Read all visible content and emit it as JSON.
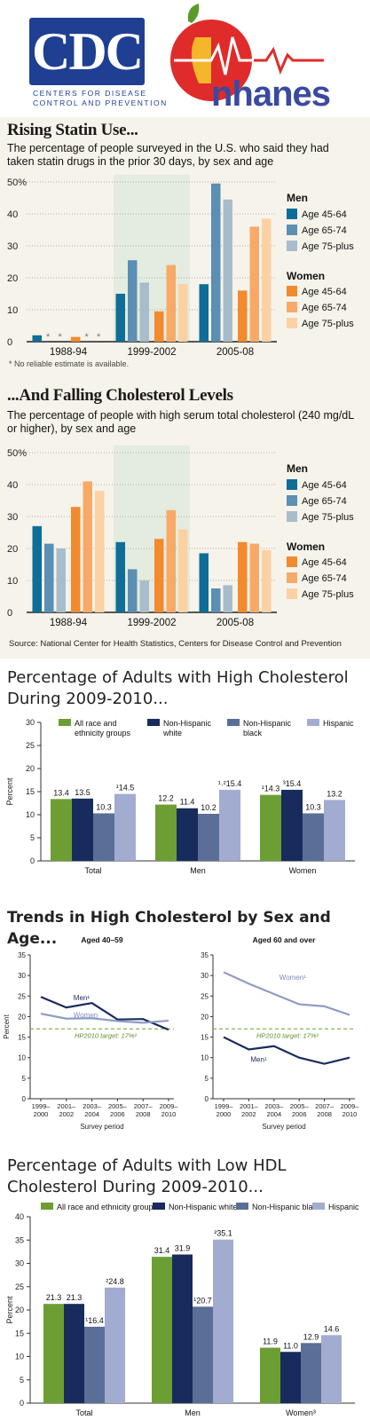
{
  "header": {
    "cdc_logo_text": "CDC",
    "cdc_tagline_1": "Centers for Disease",
    "cdc_tagline_2": "Control and Prevention",
    "nhanes_logo_text": "nhanes"
  },
  "colors": {
    "men_45_64": "#0f6e97",
    "men_65_74": "#5b8fb3",
    "men_75_plus": "#a8bdcb",
    "women_45_64": "#f28a2e",
    "women_65_74": "#f7aa68",
    "women_75_plus": "#fcd1a4",
    "green": "#6d9e33",
    "navy": "#172c5c",
    "slate": "#5b6e97",
    "lavender": "#a2acd0"
  },
  "statin": {
    "title": "Rising Statin Use...",
    "subtitle": "The percentage of people surveyed in the U.S. who said they had taken statin drugs in the prior 30 days, by sex and age",
    "footnote": "* No reliable estimate is available.",
    "legend": {
      "men_heading": "Men",
      "women_heading": "Women",
      "items": [
        "Age 45-64",
        "Age 65-74",
        "Age 75-plus"
      ]
    }
  },
  "cholesterol": {
    "title": "...And Falling Cholesterol Levels",
    "subtitle": "The percentage of people with high serum total cholesterol (240 mg/dL or higher), by sex and age",
    "source": "Source: National Center for Health Statistics, Centers for Disease Control and Prevention",
    "legend": {
      "men_heading": "Men",
      "women_heading": "Women",
      "items": [
        "Age 45-64",
        "Age 65-74",
        "Age 75-plus"
      ]
    }
  },
  "high_chol_title": "Percentage of Adults with High Cholesterol During 2009-2010...",
  "trends_title": "Trends in High Cholesterol by Sex and Age...",
  "low_hdl_title": "Percentage of Adults with Low HDL Cholesterol During 2009-2010...",
  "chart_data": [
    {
      "type": "bar",
      "categories": [
        "1988-94",
        "1999-2002",
        "2005-08"
      ],
      "ylim": [
        0,
        50
      ],
      "yticks": [
        "0",
        "10",
        "20",
        "30",
        "40",
        "50%"
      ],
      "series": [
        {
          "name": "Men Age 45-64",
          "values": [
            2,
            15,
            18
          ]
        },
        {
          "name": "Men Age 65-74",
          "values": [
            null,
            25.5,
            49.5
          ]
        },
        {
          "name": "Men Age 75-plus",
          "values": [
            null,
            18.5,
            44.5
          ]
        },
        {
          "name": "Women Age 45-64",
          "values": [
            1.5,
            9.5,
            16
          ]
        },
        {
          "name": "Women Age 65-74",
          "values": [
            null,
            24,
            36
          ]
        },
        {
          "name": "Women Age 75-plus",
          "values": [
            null,
            18,
            38.5
          ]
        }
      ],
      "missing_marker": "*",
      "legend": "right",
      "grid": true
    },
    {
      "type": "bar",
      "categories": [
        "1988-94",
        "1999-2002",
        "2005-08"
      ],
      "ylim": [
        0,
        50
      ],
      "yticks": [
        "0",
        "10",
        "20",
        "30",
        "40",
        "50%"
      ],
      "series": [
        {
          "name": "Men Age 45-64",
          "values": [
            27,
            22,
            18.5
          ]
        },
        {
          "name": "Men Age 65-74",
          "values": [
            21.5,
            13.5,
            7.5
          ]
        },
        {
          "name": "Men Age 75-plus",
          "values": [
            20,
            10,
            8.5
          ]
        },
        {
          "name": "Women Age 45-64",
          "values": [
            33,
            23,
            22
          ]
        },
        {
          "name": "Women Age 65-74",
          "values": [
            41,
            32,
            21.5
          ]
        },
        {
          "name": "Women Age 75-plus",
          "values": [
            38,
            26,
            19.5
          ]
        }
      ],
      "legend": "right",
      "grid": true
    },
    {
      "type": "bar",
      "categories": [
        "Total",
        "Men",
        "Women"
      ],
      "ylabel": "Percent",
      "ylim": [
        0,
        30
      ],
      "yticks": [
        "0",
        "5",
        "10",
        "15",
        "20",
        "25",
        "30"
      ],
      "series": [
        {
          "name": "All race and ethnicity groups",
          "values": [
            13.4,
            12.2,
            14.3
          ]
        },
        {
          "name": "Non-Hispanic white",
          "values": [
            13.5,
            11.4,
            15.4
          ]
        },
        {
          "name": "Non-Hispanic black",
          "values": [
            10.3,
            10.2,
            10.3
          ]
        },
        {
          "name": "Hispanic",
          "values": [
            14.5,
            15.4,
            13.2
          ]
        }
      ],
      "value_labels": [
        [
          "13.4",
          "12.2",
          "¹14.3"
        ],
        [
          "13.5",
          "11.4",
          "³15.4"
        ],
        [
          "10.3",
          "10.2",
          "10.3"
        ],
        [
          "¹14.5",
          "¹˒²15.4",
          "13.2"
        ]
      ],
      "legend": "top",
      "grid": false
    },
    {
      "type": "line",
      "title": "Aged 40–59",
      "xlabel": "Survey period",
      "ylabel": "Percent",
      "categories": [
        "1999–2000",
        "2001–2002",
        "2003–2004",
        "2005–2006",
        "2007–2008",
        "2009–2010"
      ],
      "ylim": [
        0,
        35
      ],
      "yticks": [
        "0",
        "5",
        "10",
        "15",
        "20",
        "25",
        "30",
        "35"
      ],
      "series": [
        {
          "name": "Men¹",
          "values": [
            24.8,
            22.2,
            23.3,
            19.3,
            19.4,
            16.8
          ]
        },
        {
          "name": "Women",
          "values": [
            20.7,
            19.5,
            19.6,
            18.9,
            18.5,
            19.0
          ]
        }
      ],
      "target": {
        "label": "HP2010 target: 17%²",
        "value": 17
      }
    },
    {
      "type": "line",
      "title": "Aged 60 and over",
      "xlabel": "Survey period",
      "categories": [
        "1999–2000",
        "2001–2002",
        "2003–2004",
        "2005–2006",
        "2007–2008",
        "2009–2010"
      ],
      "ylim": [
        0,
        35
      ],
      "yticks": [
        "0",
        "5",
        "10",
        "15",
        "20",
        "25",
        "30",
        "35"
      ],
      "series": [
        {
          "name": "Men¹",
          "values": [
            15.0,
            12.0,
            12.8,
            10.0,
            8.5,
            10.0
          ]
        },
        {
          "name": "Women¹",
          "values": [
            30.8,
            28.0,
            25.5,
            23.0,
            22.5,
            20.4
          ]
        }
      ],
      "target": {
        "label": "HP2010 target: 17%²",
        "value": 17
      }
    },
    {
      "type": "bar",
      "categories": [
        "Total",
        "Men",
        "Women³"
      ],
      "ylabel": "Percent",
      "ylim": [
        0,
        40
      ],
      "yticks": [
        "0",
        "5",
        "10",
        "15",
        "20",
        "25",
        "30",
        "35",
        "40"
      ],
      "series": [
        {
          "name": "All race and ethnicity groups",
          "values": [
            21.3,
            31.4,
            11.9
          ]
        },
        {
          "name": "Non-Hispanic white",
          "values": [
            21.3,
            31.9,
            11.0
          ]
        },
        {
          "name": "Non-Hispanic black",
          "values": [
            16.4,
            20.7,
            12.9
          ]
        },
        {
          "name": "Hispanic",
          "values": [
            24.8,
            35.1,
            14.6
          ]
        }
      ],
      "value_labels": [
        [
          "21.3",
          "31.4",
          "11.9"
        ],
        [
          "21.3",
          "31.9",
          "11.0"
        ],
        [
          "¹16.4",
          "¹20.7",
          "12.9"
        ],
        [
          "²24.8",
          "²35.1",
          "14.6"
        ]
      ],
      "legend": "top",
      "grid": false
    }
  ]
}
